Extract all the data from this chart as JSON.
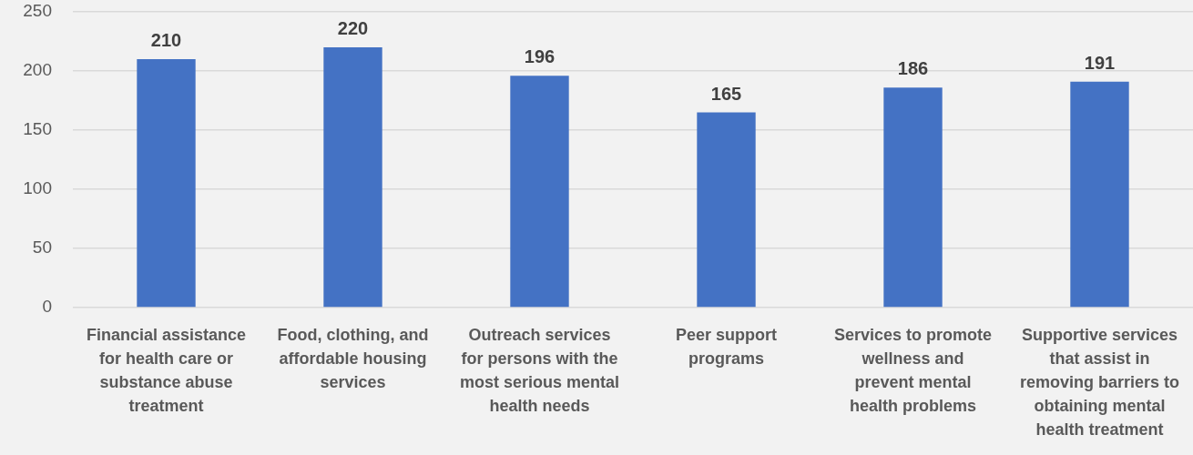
{
  "chart_data": {
    "type": "bar",
    "categories": [
      "Financial assistance for health care or substance abuse treatment",
      "Food, clothing, and affordable housing services",
      "Outreach services for persons with the most serious mental health needs",
      "Peer support programs",
      "Services to promote wellness and prevent mental health problems",
      "Supportive services that assist in removing barriers to obtaining mental health treatment"
    ],
    "values": [
      210,
      220,
      196,
      165,
      186,
      191
    ],
    "color": "#4472c4",
    "ylim": [
      0,
      250
    ],
    "yticks": [
      0,
      50,
      100,
      150,
      200,
      250
    ],
    "grid": "y",
    "data_labels": true
  }
}
